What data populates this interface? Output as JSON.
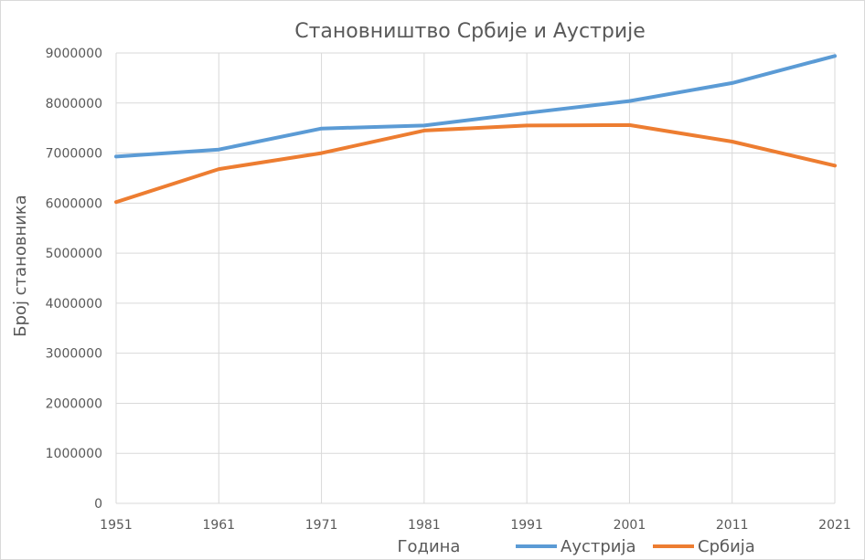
{
  "chart_data": {
    "type": "line",
    "title": "Становништво Србије и Аустрије",
    "xlabel": "Година",
    "ylabel": "Број становника",
    "x": [
      "1951",
      "1961",
      "1971",
      "1981",
      "1991",
      "2001",
      "2011",
      "2021"
    ],
    "y_ticks": [
      "0",
      "1000000",
      "2000000",
      "3000000",
      "4000000",
      "5000000",
      "6000000",
      "7000000",
      "8000000",
      "9000000"
    ],
    "ylim": [
      0,
      9000000
    ],
    "grid": true,
    "legend_position": "bottom",
    "series": [
      {
        "name": "Аустрија",
        "color": "#5b9bd5",
        "values": [
          6930000,
          7070000,
          7490000,
          7550000,
          7800000,
          8040000,
          8400000,
          8940000
        ]
      },
      {
        "name": "Србија",
        "color": "#ed7d31",
        "values": [
          6020000,
          6680000,
          7000000,
          7450000,
          7550000,
          7560000,
          7230000,
          6750000
        ]
      }
    ]
  }
}
